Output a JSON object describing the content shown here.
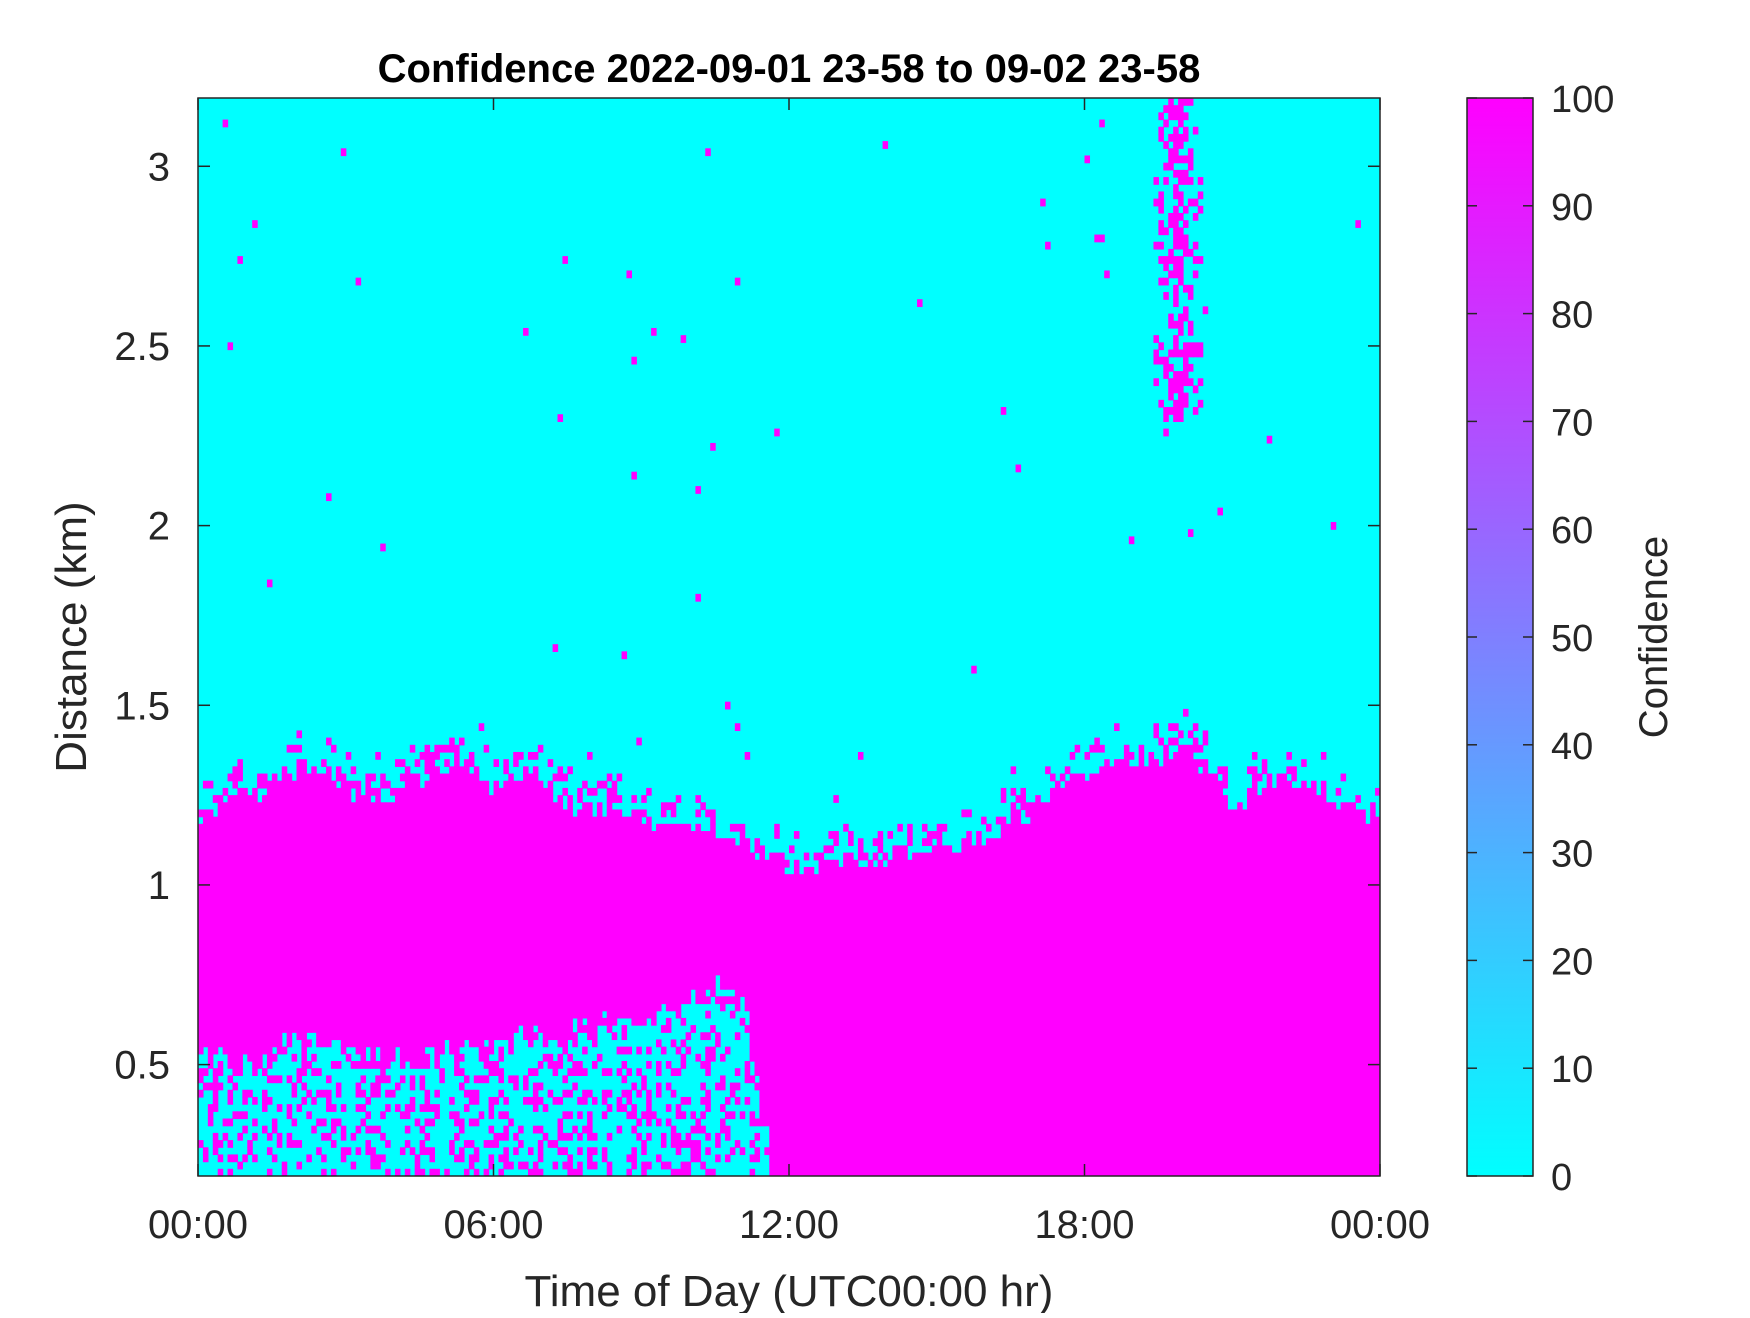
{
  "chart_data": {
    "type": "heatmap",
    "title": "Confidence 2022-09-01 23-58 to 09-02 23-58",
    "xlabel": "Time of Day (UTC00:00 hr)",
    "ylabel": "Distance (km)",
    "xlim_hours": [
      0,
      24
    ],
    "ylim": [
      0.19,
      3.19
    ],
    "x_ticks": [
      {
        "value": 0,
        "label": "00:00"
      },
      {
        "value": 6,
        "label": "06:00"
      },
      {
        "value": 12,
        "label": "12:00"
      },
      {
        "value": 18,
        "label": "18:00"
      },
      {
        "value": 24,
        "label": "00:00"
      }
    ],
    "y_ticks": [
      {
        "value": 0.5,
        "label": "0.5"
      },
      {
        "value": 1,
        "label": "1"
      },
      {
        "value": 1.5,
        "label": "1.5"
      },
      {
        "value": 2,
        "label": "2"
      },
      {
        "value": 2.5,
        "label": "2.5"
      },
      {
        "value": 3,
        "label": "3"
      }
    ],
    "colorbar": {
      "label": "Confidence",
      "range": [
        0,
        100
      ],
      "low_color": "#00ffff",
      "high_color": "#ff00ff",
      "ticks": [
        0,
        10,
        20,
        30,
        40,
        50,
        60,
        70,
        80,
        90,
        100
      ],
      "tick_labels": [
        "0",
        "10",
        "20",
        "30",
        "40",
        "50",
        "60",
        "70",
        "80",
        "90",
        "100"
      ]
    },
    "background_value": 0,
    "high_confidence_value": 100,
    "high_confidence_top_boundary_km": {
      "hours": [
        0,
        0.5,
        1,
        1.5,
        2,
        2.5,
        3,
        3.5,
        4,
        4.5,
        5,
        5.5,
        6,
        6.5,
        7,
        7.5,
        8,
        8.5,
        9,
        9.5,
        10,
        10.5,
        11,
        11.2,
        11.5,
        12,
        12.5,
        13,
        13.5,
        14,
        14.5,
        15,
        15.5,
        16,
        16.5,
        17,
        17.5,
        18,
        18.5,
        19,
        19.5,
        20,
        20.5,
        21,
        21.5,
        22,
        22.5,
        23,
        23.5,
        24
      ],
      "km": [
        1.15,
        1.24,
        1.27,
        1.25,
        1.33,
        1.31,
        1.26,
        1.24,
        1.26,
        1.3,
        1.33,
        1.29,
        1.27,
        1.31,
        1.29,
        1.23,
        1.2,
        1.2,
        1.18,
        1.17,
        1.15,
        1.14,
        1.13,
        1.12,
        1.08,
        1.05,
        1.04,
        1.06,
        1.07,
        1.08,
        1.09,
        1.1,
        1.11,
        1.13,
        1.17,
        1.21,
        1.27,
        1.31,
        1.34,
        1.34,
        1.35,
        1.39,
        1.31,
        1.22,
        1.26,
        1.29,
        1.29,
        1.24,
        1.2,
        1.18
      ]
    },
    "low_confidence_lower_region_top_km": {
      "hours": [
        0,
        1,
        2,
        3,
        4,
        5,
        6,
        7,
        8,
        9,
        10,
        11,
        11.5
      ],
      "km": [
        0.55,
        0.5,
        0.57,
        0.55,
        0.52,
        0.54,
        0.57,
        0.58,
        0.6,
        0.63,
        0.68,
        0.72,
        0.35
      ]
    },
    "high_confidence_plume": {
      "hours_range": [
        19.4,
        20.4
      ],
      "km_range": [
        2.3,
        3.19
      ]
    }
  }
}
